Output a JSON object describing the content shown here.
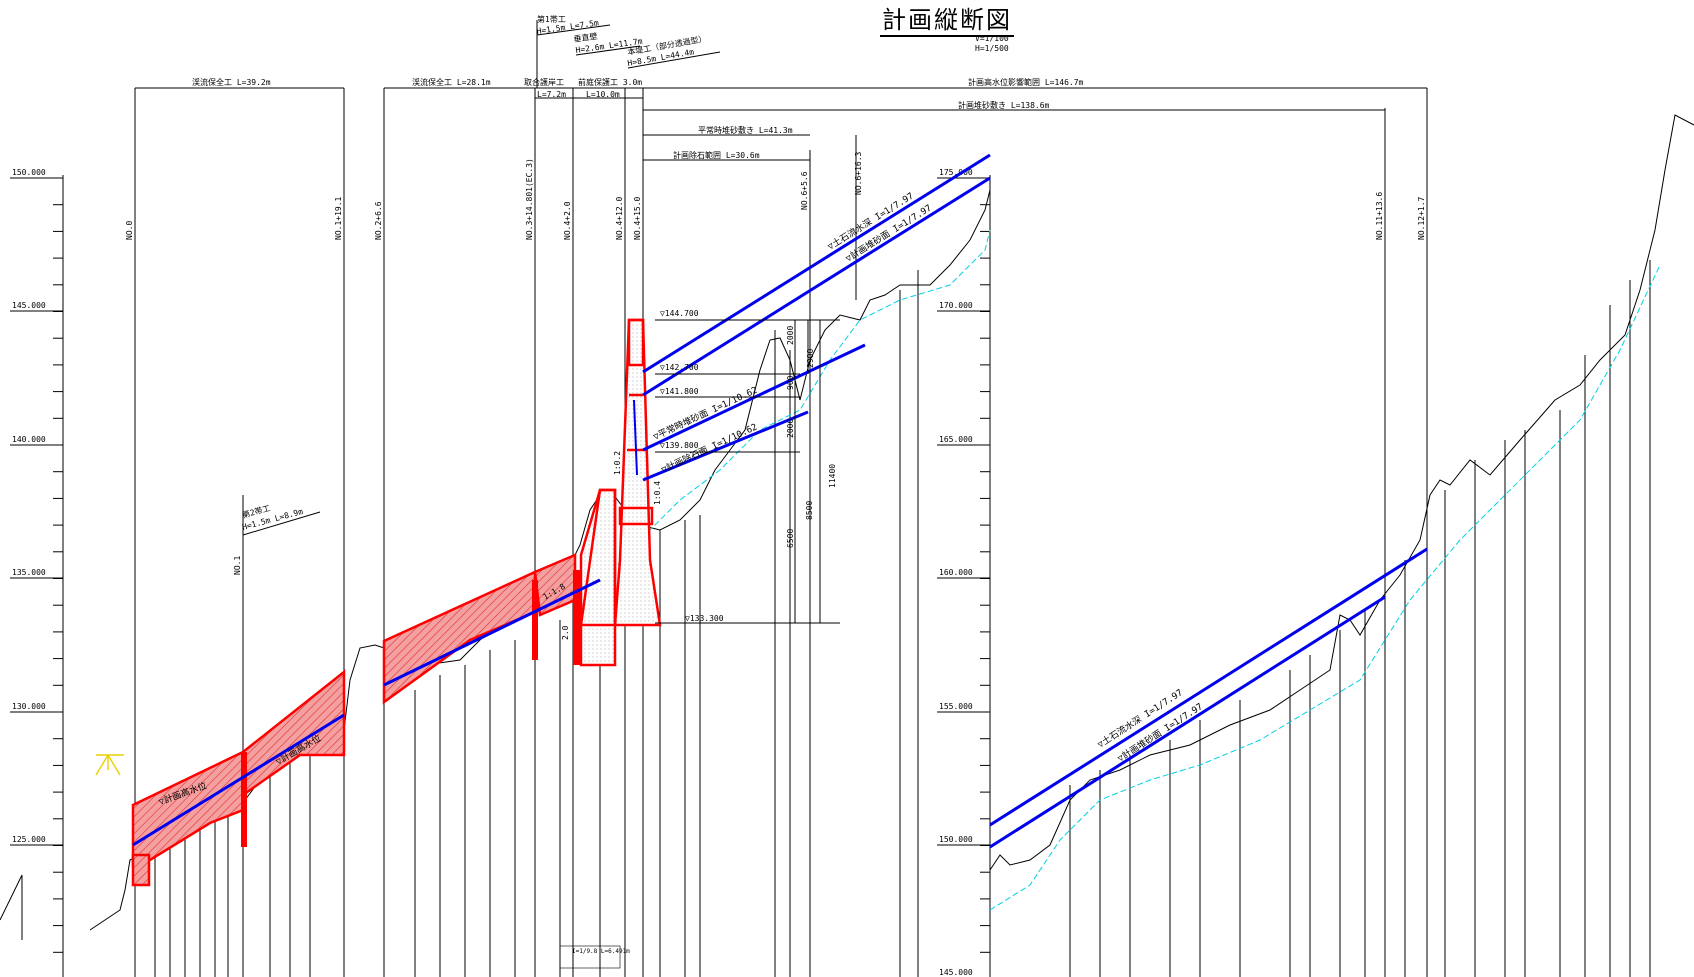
{
  "title": "計画縦断図",
  "scale": {
    "v": "V=1/100",
    "h": "H=1/500"
  },
  "left_axis_ticks": [
    "150.000",
    "145.000",
    "140.000",
    "135.000",
    "130.000",
    "125.000"
  ],
  "right_axis_ticks": [
    "175.000",
    "170.000",
    "165.000",
    "160.000",
    "155.000",
    "150.000",
    "145.000"
  ],
  "stations": [
    "NO.0",
    "NO.1+19.1",
    "NO.1",
    "NO.2+6.6",
    "NO.3+14.801(EC.3)",
    "NO.4+2.0",
    "NO.4+12.0",
    "NO.4+15.0",
    "NO.6+5.6",
    "NO.6+16.3",
    "NO.11+13.6",
    "NO.12+1.7"
  ],
  "dimension_labels": {
    "keiryu_hozen_1": "渓流保全工 L=39.2m",
    "keiryu_hozen_2": "渓流保全工 L=28.1m",
    "torai_gogan": "取合護岸工",
    "torai_l": "L=7.2m",
    "maeniwa": "前庭保護工 3.0m",
    "maeniwa_l": "L=10.0m",
    "koushui_eikyo": "計画高水位影響範囲 L=146.7m",
    "taisha_shiki": "計画堆砂敷き L=138.6m",
    "heijo_taisha": "平常時堆砂敷き L=41.3m",
    "josekihan": "計画除石範囲 L=30.6m"
  },
  "callouts": {
    "dai1_tai": "第1帯工",
    "dai1_tai_dim": "H=1.5m L=7.5m",
    "suichokuheki": "垂直壁",
    "suichokuheki_dim": "H=2.6m L=11.7m",
    "hontei": "本堤工（部分透過型）",
    "hontei_dim": "H=8.5m L=44.4m",
    "dai2_tai": "第2帯工",
    "dai2_tai_dim": "H=1.5m L=8.9m",
    "slope_box": "I=1/9.8 L=6.491m"
  },
  "elevations": [
    "▽144.700",
    "▽142.700",
    "▽141.800",
    "▽139.800",
    "▽133.300"
  ],
  "dim_values": [
    "2000",
    "2900",
    "900",
    "2000",
    "11400",
    "8500",
    "6500"
  ],
  "line_labels": {
    "dosha": "▽土石流水深 I=1/7.97",
    "taisha": "▽計画堆砂面 I=1/7.97",
    "heijo": "▽平常時堆砂面 I=1/10.62",
    "joseki": "▽計画除石面 I=1/10.62",
    "kousui": "▽計画高水位",
    "kousui2": "▽計画高水位",
    "dosha_r": "▽土石流水深 I=1/7.97",
    "taisha_r": "▽計画堆砂面 I=1/7.97"
  },
  "slope_marks": {
    "a": "1:0.2",
    "b": "1:0.4",
    "c": "2.0",
    "d": "1:1.8"
  },
  "colors": {
    "structure": "#ff0000",
    "design_line": "#0000ff",
    "ground": "#000000",
    "water": "#00d8e8",
    "hatch_fill": "#f08080"
  }
}
